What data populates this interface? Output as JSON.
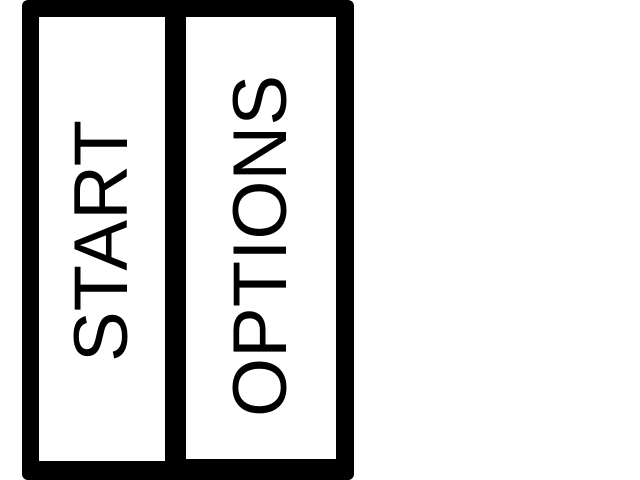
{
  "menu": {
    "buttons": [
      {
        "label": "START"
      },
      {
        "label": "OPTIONS"
      }
    ]
  },
  "colors": {
    "frame": "#000000",
    "button_background": "#ffffff",
    "text": "#000000"
  }
}
